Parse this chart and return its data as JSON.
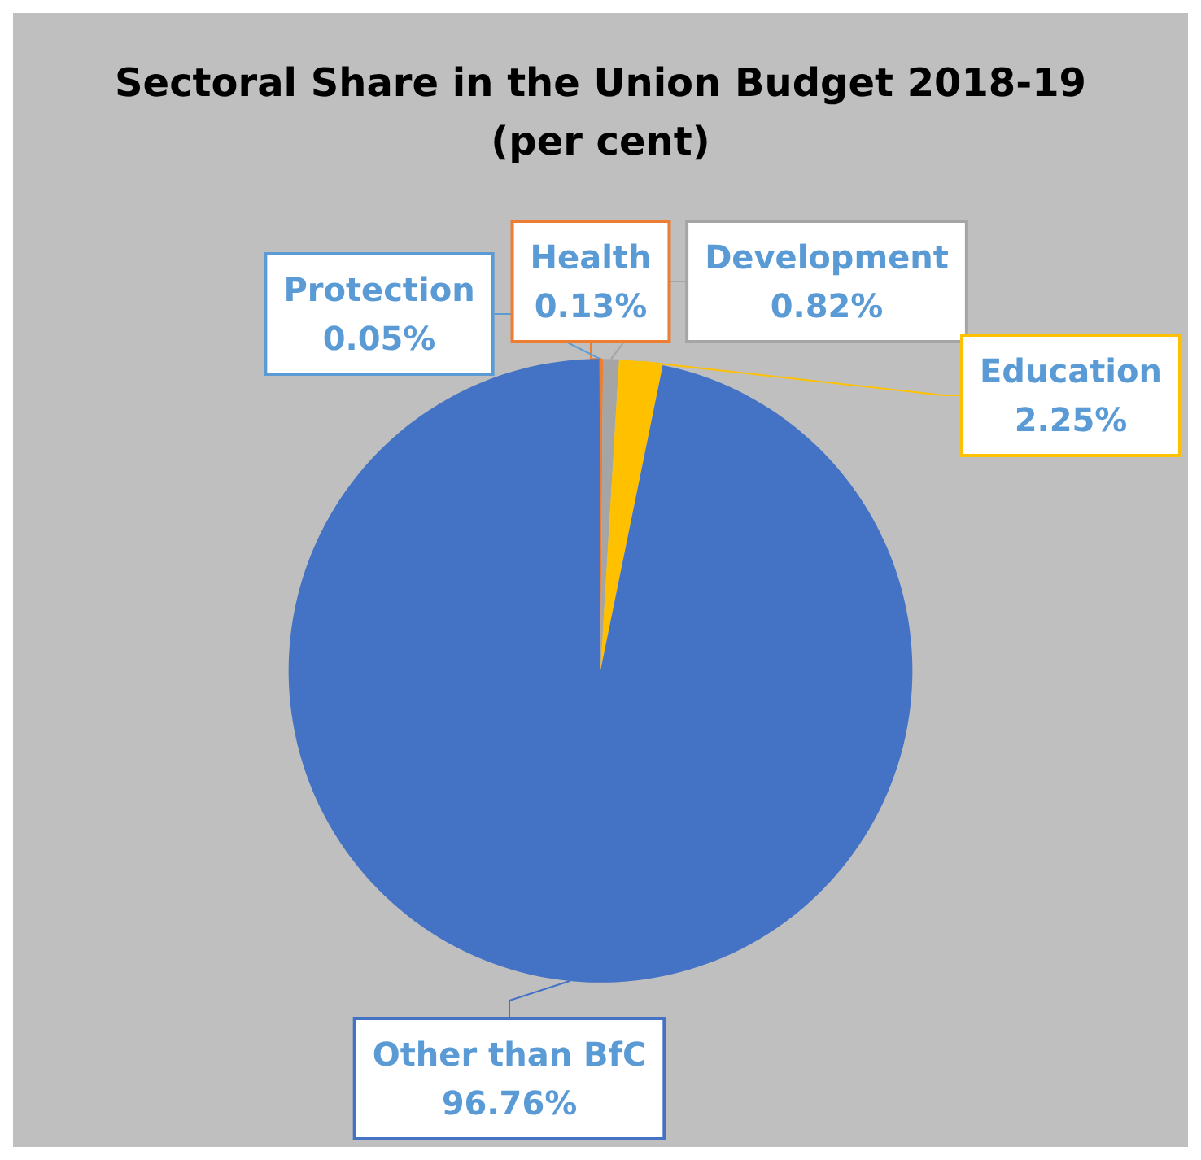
{
  "chart_data": {
    "type": "pie",
    "title": "Sectoral Share in the Union Budget 2018-19\n(per cent)",
    "categories": [
      "Health",
      "Development",
      "Education",
      "Other than BfC",
      "Protection"
    ],
    "values": [
      0.13,
      0.82,
      2.25,
      96.76,
      0.05
    ],
    "value_labels": [
      "0.13%",
      "0.82%",
      "2.25%",
      "96.76%",
      "0.05%"
    ],
    "colors": [
      "#ed7d31",
      "#a5a5a5",
      "#ffc000",
      "#4472c4",
      "#5b9bd5"
    ],
    "legend": false
  }
}
